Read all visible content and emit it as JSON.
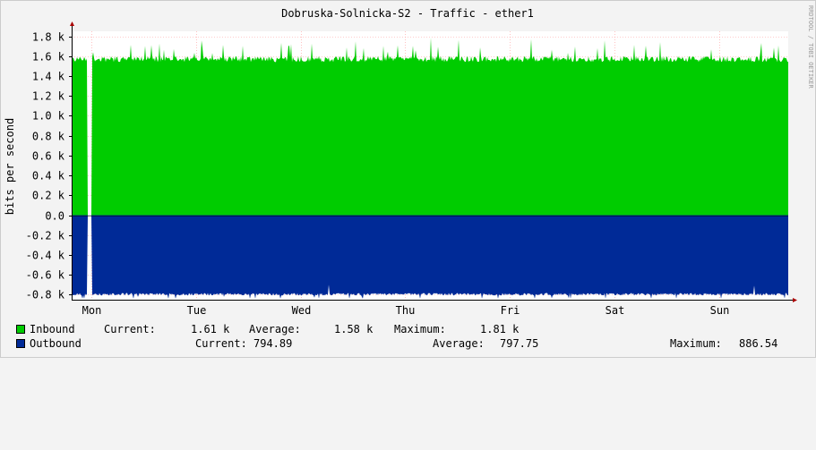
{
  "chart_data": {
    "type": "area",
    "title": "Dobruska-Solnicka-S2 - Traffic - ether1",
    "ylabel": "bits per second",
    "watermark": "RRDTOOL / TOBI OETIKER",
    "ylim": [
      -850,
      1850
    ],
    "y_ticks": [
      {
        "value": 1800,
        "label": "1.8 k"
      },
      {
        "value": 1600,
        "label": "1.6 k"
      },
      {
        "value": 1400,
        "label": "1.4 k"
      },
      {
        "value": 1200,
        "label": "1.2 k"
      },
      {
        "value": 1000,
        "label": "1.0 k"
      },
      {
        "value": 800,
        "label": "0.8 k"
      },
      {
        "value": 600,
        "label": "0.6 k"
      },
      {
        "value": 400,
        "label": "0.4 k"
      },
      {
        "value": 200,
        "label": "0.2 k"
      },
      {
        "value": 0,
        "label": "0.0"
      },
      {
        "value": -200,
        "label": "-0.2 k"
      },
      {
        "value": -400,
        "label": "-0.4 k"
      },
      {
        "value": -600,
        "label": "-0.6 k"
      },
      {
        "value": -800,
        "label": "-0.8 k"
      }
    ],
    "x_ticks": [
      "Mon",
      "Tue",
      "Wed",
      "Thu",
      "Fri",
      "Sat",
      "Sun"
    ],
    "grid": true,
    "legend_position": "bottom",
    "series": [
      {
        "name": "Inbound",
        "color": "#00cc00",
        "base_value": 1570,
        "current": "1.61 k",
        "average": "1.58 k",
        "maximum": "1.81 k"
      },
      {
        "name": "Outbound",
        "color": "#002a97",
        "base_value": -790,
        "current": "794.89",
        "average": "797.75",
        "maximum": "886.54"
      }
    ],
    "gap_day": "Mon"
  },
  "legend": {
    "current_label": "Current:",
    "average_label": "Average:",
    "maximum_label": "Maximum:"
  }
}
